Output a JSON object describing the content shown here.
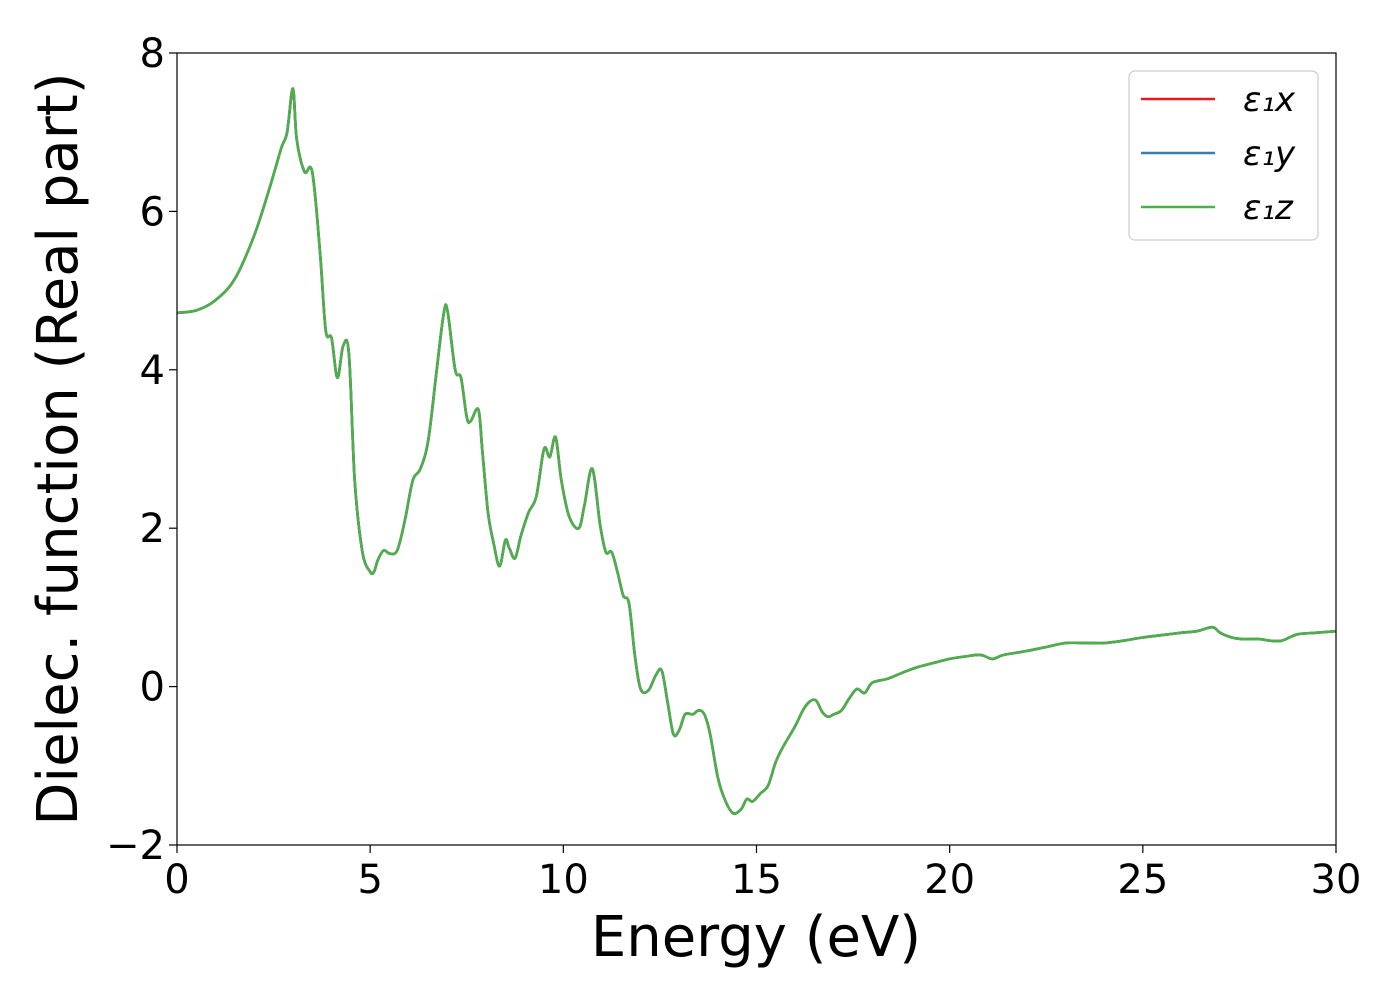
{
  "chart_data": {
    "type": "line",
    "title": "",
    "xlabel": "Energy (eV)",
    "ylabel": "Dielec. function (Real part)",
    "xlim": [
      0,
      30
    ],
    "ylim": [
      -2,
      8
    ],
    "xticks": [
      0,
      5,
      10,
      15,
      20,
      25,
      30
    ],
    "xtick_labels": [
      "0",
      "5",
      "10",
      "15",
      "20",
      "25",
      "30"
    ],
    "yticks": [
      -2,
      0,
      2,
      4,
      6,
      8
    ],
    "ytick_labels": [
      "−2",
      "0",
      "2",
      "4",
      "6",
      "8"
    ],
    "grid": false,
    "legend_position": "top-right",
    "x": [
      0,
      0.5,
      1.0,
      1.5,
      2.0,
      2.4,
      2.7,
      2.85,
      3.0,
      3.1,
      3.3,
      3.5,
      3.7,
      3.85,
      4.0,
      4.15,
      4.3,
      4.45,
      4.6,
      4.8,
      5.0,
      5.1,
      5.2,
      5.35,
      5.5,
      5.7,
      5.9,
      6.1,
      6.3,
      6.5,
      6.7,
      6.9,
      7.0,
      7.2,
      7.35,
      7.5,
      7.6,
      7.8,
      7.9,
      8.05,
      8.2,
      8.35,
      8.5,
      8.6,
      8.75,
      8.9,
      9.1,
      9.3,
      9.5,
      9.65,
      9.8,
      9.95,
      10.15,
      10.4,
      10.55,
      10.75,
      10.95,
      11.1,
      11.25,
      11.4,
      11.55,
      11.7,
      11.85,
      12.0,
      12.2,
      12.4,
      12.55,
      12.7,
      12.85,
      13.0,
      13.15,
      13.35,
      13.5,
      13.65,
      13.8,
      14.0,
      14.2,
      14.4,
      14.6,
      14.75,
      14.9,
      15.1,
      15.3,
      15.5,
      15.7,
      16.0,
      16.2,
      16.4,
      16.55,
      16.7,
      16.85,
      17.0,
      17.2,
      17.4,
      17.6,
      17.8,
      18.0,
      18.4,
      18.8,
      19.2,
      19.6,
      20.0,
      20.4,
      20.8,
      21.1,
      21.4,
      22.0,
      22.5,
      23.0,
      23.5,
      24.0,
      24.5,
      25.0,
      25.5,
      26.0,
      26.4,
      26.8,
      27.0,
      27.3,
      27.6,
      28.0,
      28.3,
      28.6,
      29.0,
      29.5,
      30.0
    ],
    "series": [
      {
        "name": "ε₁x",
        "color": "#e41a1c",
        "y": [
          4.72,
          4.75,
          4.88,
          5.15,
          5.7,
          6.3,
          6.8,
          7.0,
          7.55,
          6.9,
          6.5,
          6.5,
          5.5,
          4.5,
          4.4,
          3.9,
          4.3,
          4.2,
          2.6,
          1.7,
          1.45,
          1.45,
          1.6,
          1.72,
          1.68,
          1.72,
          2.1,
          2.6,
          2.75,
          3.1,
          3.9,
          4.7,
          4.75,
          4.0,
          3.9,
          3.4,
          3.35,
          3.5,
          3.0,
          2.2,
          1.8,
          1.52,
          1.85,
          1.75,
          1.62,
          1.9,
          2.2,
          2.4,
          3.0,
          2.9,
          3.15,
          2.6,
          2.15,
          2.0,
          2.3,
          2.75,
          2.05,
          1.7,
          1.7,
          1.45,
          1.15,
          1.05,
          0.4,
          -0.03,
          -0.05,
          0.15,
          0.2,
          -0.2,
          -0.6,
          -0.55,
          -0.35,
          -0.35,
          -0.3,
          -0.35,
          -0.6,
          -1.15,
          -1.45,
          -1.6,
          -1.55,
          -1.42,
          -1.45,
          -1.35,
          -1.25,
          -0.95,
          -0.75,
          -0.5,
          -0.3,
          -0.18,
          -0.18,
          -0.32,
          -0.38,
          -0.35,
          -0.3,
          -0.15,
          -0.03,
          -0.08,
          0.05,
          0.1,
          0.18,
          0.25,
          0.3,
          0.35,
          0.38,
          0.4,
          0.35,
          0.4,
          0.45,
          0.5,
          0.55,
          0.55,
          0.55,
          0.58,
          0.62,
          0.65,
          0.68,
          0.7,
          0.75,
          0.68,
          0.62,
          0.6,
          0.6,
          0.58,
          0.58,
          0.66,
          0.68,
          0.7
        ]
      },
      {
        "name": "ε₁y",
        "color": "#377eb8",
        "y": [
          4.72,
          4.75,
          4.88,
          5.15,
          5.7,
          6.3,
          6.8,
          7.0,
          7.55,
          6.9,
          6.5,
          6.5,
          5.5,
          4.5,
          4.4,
          3.9,
          4.3,
          4.2,
          2.6,
          1.7,
          1.45,
          1.45,
          1.6,
          1.72,
          1.68,
          1.72,
          2.1,
          2.6,
          2.75,
          3.1,
          3.9,
          4.7,
          4.75,
          4.0,
          3.9,
          3.4,
          3.35,
          3.5,
          3.0,
          2.2,
          1.8,
          1.52,
          1.85,
          1.75,
          1.62,
          1.9,
          2.2,
          2.4,
          3.0,
          2.9,
          3.15,
          2.6,
          2.15,
          2.0,
          2.3,
          2.75,
          2.05,
          1.7,
          1.7,
          1.45,
          1.15,
          1.05,
          0.4,
          -0.03,
          -0.05,
          0.15,
          0.2,
          -0.2,
          -0.6,
          -0.55,
          -0.35,
          -0.35,
          -0.3,
          -0.35,
          -0.6,
          -1.15,
          -1.45,
          -1.6,
          -1.55,
          -1.42,
          -1.45,
          -1.35,
          -1.25,
          -0.95,
          -0.75,
          -0.5,
          -0.3,
          -0.18,
          -0.18,
          -0.32,
          -0.38,
          -0.35,
          -0.3,
          -0.15,
          -0.03,
          -0.08,
          0.05,
          0.1,
          0.18,
          0.25,
          0.3,
          0.35,
          0.38,
          0.4,
          0.35,
          0.4,
          0.45,
          0.5,
          0.55,
          0.55,
          0.55,
          0.58,
          0.62,
          0.65,
          0.68,
          0.7,
          0.75,
          0.68,
          0.62,
          0.6,
          0.6,
          0.58,
          0.58,
          0.66,
          0.68,
          0.7
        ]
      },
      {
        "name": "ε₁z",
        "color": "#4daf4a",
        "y": [
          4.72,
          4.75,
          4.88,
          5.15,
          5.7,
          6.3,
          6.8,
          7.0,
          7.55,
          6.9,
          6.5,
          6.5,
          5.5,
          4.5,
          4.4,
          3.9,
          4.3,
          4.2,
          2.6,
          1.7,
          1.45,
          1.45,
          1.6,
          1.72,
          1.68,
          1.72,
          2.1,
          2.6,
          2.75,
          3.1,
          3.9,
          4.7,
          4.75,
          4.0,
          3.9,
          3.4,
          3.35,
          3.5,
          3.0,
          2.2,
          1.8,
          1.52,
          1.85,
          1.75,
          1.62,
          1.9,
          2.2,
          2.4,
          3.0,
          2.9,
          3.15,
          2.6,
          2.15,
          2.0,
          2.3,
          2.75,
          2.05,
          1.7,
          1.7,
          1.45,
          1.15,
          1.05,
          0.4,
          -0.03,
          -0.05,
          0.15,
          0.2,
          -0.2,
          -0.6,
          -0.55,
          -0.35,
          -0.35,
          -0.3,
          -0.35,
          -0.6,
          -1.15,
          -1.45,
          -1.6,
          -1.55,
          -1.42,
          -1.45,
          -1.35,
          -1.25,
          -0.95,
          -0.75,
          -0.5,
          -0.3,
          -0.18,
          -0.18,
          -0.32,
          -0.38,
          -0.35,
          -0.3,
          -0.15,
          -0.03,
          -0.08,
          0.05,
          0.1,
          0.18,
          0.25,
          0.3,
          0.35,
          0.38,
          0.4,
          0.35,
          0.4,
          0.45,
          0.5,
          0.55,
          0.55,
          0.55,
          0.58,
          0.62,
          0.65,
          0.68,
          0.7,
          0.75,
          0.68,
          0.62,
          0.6,
          0.6,
          0.58,
          0.58,
          0.66,
          0.68,
          0.7
        ]
      }
    ]
  }
}
